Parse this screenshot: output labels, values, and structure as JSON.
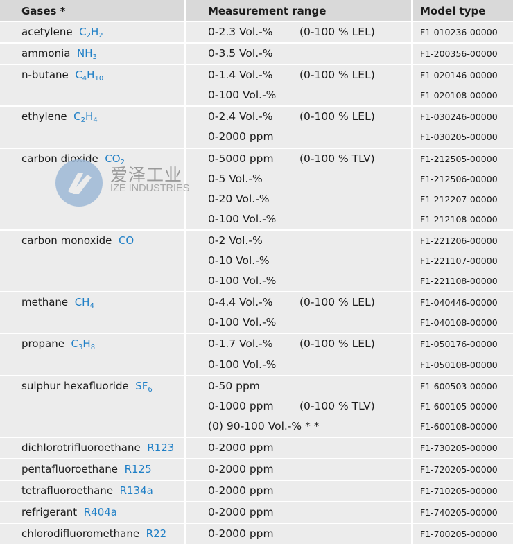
{
  "header": {
    "gases": "Gases *",
    "range": "Measurement range",
    "model": "Model type"
  },
  "colors": {
    "formula": "#1f7fc6",
    "header_bg": "#d9d9d9",
    "row_bg": "#ececec"
  },
  "rows": [
    {
      "gas": "acetylene",
      "formula": [
        {
          "t": "C"
        },
        {
          "s": "2"
        },
        {
          "t": "H"
        },
        {
          "s": "2"
        }
      ],
      "ranges": [
        {
          "main": "0-2.3 Vol.-%",
          "note": "(0-100 % LEL)",
          "model": "F1-010236-00000"
        }
      ]
    },
    {
      "gas": "ammonia",
      "formula": [
        {
          "t": "NH"
        },
        {
          "s": "3"
        }
      ],
      "ranges": [
        {
          "main": "0-3.5 Vol.-%",
          "note": "",
          "model": "F1-200356-00000"
        }
      ]
    },
    {
      "gas": "n-butane",
      "formula": [
        {
          "t": "C"
        },
        {
          "s": "4"
        },
        {
          "t": "H"
        },
        {
          "s": "10"
        }
      ],
      "ranges": [
        {
          "main": "0-1.4 Vol.-%",
          "note": "(0-100 % LEL)",
          "model": "F1-020146-00000"
        },
        {
          "main": "0-100 Vol.-%",
          "note": "",
          "model": "F1-020108-00000"
        }
      ]
    },
    {
      "gas": "ethylene",
      "formula": [
        {
          "t": "C"
        },
        {
          "s": "2"
        },
        {
          "t": "H"
        },
        {
          "s": "4"
        }
      ],
      "ranges": [
        {
          "main": "0-2.4 Vol.-%",
          "note": "(0-100 % LEL)",
          "model": "F1-030246-00000"
        },
        {
          "main": "0-2000 ppm",
          "note": "",
          "model": "F1-030205-00000"
        }
      ]
    },
    {
      "gas": "carbon dioxide",
      "formula": [
        {
          "t": "CO"
        },
        {
          "s": "2"
        }
      ],
      "ranges": [
        {
          "main": "0-5000 ppm",
          "note": "(0-100 % TLV)",
          "model": "F1-212505-00000"
        },
        {
          "main": "0-5 Vol.-%",
          "note": "",
          "model": "F1-212506-00000"
        },
        {
          "main": "0-20 Vol.-%",
          "note": "",
          "model": "F1-212207-00000"
        },
        {
          "main": "0-100 Vol.-%",
          "note": "",
          "model": "F1-212108-00000"
        }
      ]
    },
    {
      "gas": "carbon monoxide",
      "formula": [
        {
          "t": "CO"
        }
      ],
      "ranges": [
        {
          "main": "0-2 Vol.-%",
          "note": "",
          "model": "F1-221206-00000"
        },
        {
          "main": "0-10 Vol.-%",
          "note": "",
          "model": "F1-221107-00000"
        },
        {
          "main": "0-100 Vol.-%",
          "note": "",
          "model": "F1-221108-00000"
        }
      ]
    },
    {
      "gas": "methane",
      "formula": [
        {
          "t": "CH"
        },
        {
          "s": "4"
        }
      ],
      "ranges": [
        {
          "main": "0-4.4 Vol.-%",
          "note": "(0-100 % LEL)",
          "model": "F1-040446-00000"
        },
        {
          "main": "0-100 Vol.-%",
          "note": "",
          "model": "F1-040108-00000"
        }
      ]
    },
    {
      "gas": "propane",
      "formula": [
        {
          "t": "C"
        },
        {
          "s": "3"
        },
        {
          "t": "H"
        },
        {
          "s": "8"
        }
      ],
      "ranges": [
        {
          "main": "0-1.7 Vol.-%",
          "note": "(0-100 % LEL)",
          "model": "F1-050176-00000"
        },
        {
          "main": "0-100 Vol.-%",
          "note": "",
          "model": "F1-050108-00000"
        }
      ]
    },
    {
      "gas": "sulphur hexafluoride",
      "formula": [
        {
          "t": "SF"
        },
        {
          "s": "6"
        }
      ],
      "ranges": [
        {
          "main": "0-50 ppm",
          "note": "",
          "model": "F1-600503-00000"
        },
        {
          "main": "0-1000 ppm",
          "note": "(0-100 % TLV)",
          "model": "F1-600105-00000"
        },
        {
          "main": "(0) 90-100 Vol.-% * *",
          "note": "",
          "model": "F1-600108-00000"
        }
      ]
    },
    {
      "gas": "dichlorotrifluoroethane",
      "formula": [
        {
          "t": "R123"
        }
      ],
      "ranges": [
        {
          "main": "0-2000 ppm",
          "note": "",
          "model": "F1-730205-00000"
        }
      ]
    },
    {
      "gas": "pentafluoroethane",
      "formula": [
        {
          "t": "R125"
        }
      ],
      "ranges": [
        {
          "main": "0-2000 ppm",
          "note": "",
          "model": "F1-720205-00000"
        }
      ]
    },
    {
      "gas": "tetrafluoroethane",
      "formula": [
        {
          "t": "R134a"
        }
      ],
      "ranges": [
        {
          "main": "0-2000 ppm",
          "note": "",
          "model": "F1-710205-00000"
        }
      ]
    },
    {
      "gas": "refrigerant",
      "formula": [
        {
          "t": "R404a"
        }
      ],
      "ranges": [
        {
          "main": "0-2000 ppm",
          "note": "",
          "model": "F1-740205-00000"
        }
      ]
    },
    {
      "gas": "chlorodifluoromethane",
      "formula": [
        {
          "t": "R22"
        }
      ],
      "ranges": [
        {
          "main": "0-2000 ppm",
          "note": "",
          "model": "F1-700205-00000"
        }
      ]
    }
  ],
  "watermark": {
    "cn": "爱泽工业",
    "en": "IZE INDUSTRIES"
  }
}
